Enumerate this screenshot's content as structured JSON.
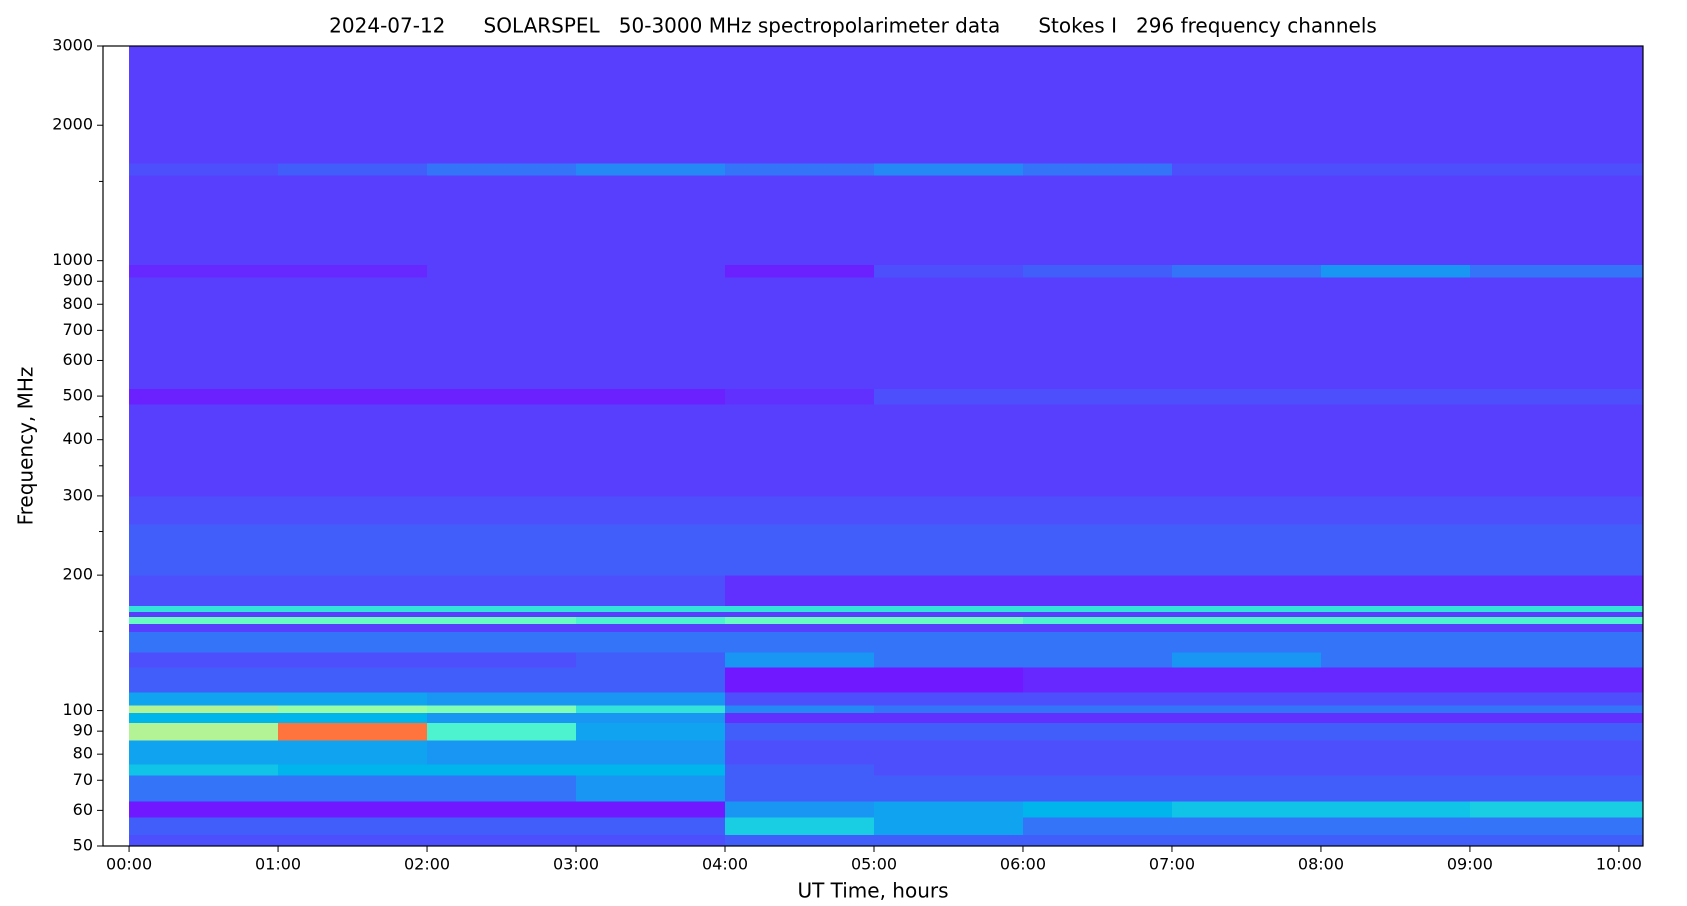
{
  "chart_data": {
    "type": "heatmap",
    "title": "2024-07-12      SOLARSPEL   50-3000 MHz spectropolarimeter data      Stokes I   296 frequency channels",
    "xlabel": "UT Time, hours",
    "ylabel": "Frequency, MHz",
    "colormap": "rainbow",
    "ylog": true,
    "xlim": [
      -10.5,
      609.7
    ],
    "xticks": [
      {
        "value": 0,
        "label": "00:00"
      },
      {
        "value": 60,
        "label": "01:00"
      },
      {
        "value": 120,
        "label": "02:00"
      },
      {
        "value": 180,
        "label": "03:00"
      },
      {
        "value": 240,
        "label": "04:00"
      },
      {
        "value": 300,
        "label": "05:00"
      },
      {
        "value": 360,
        "label": "06:00"
      },
      {
        "value": 420,
        "label": "07:00"
      },
      {
        "value": 480,
        "label": "08:00"
      },
      {
        "value": 540,
        "label": "09:00"
      },
      {
        "value": 600,
        "label": "10:00"
      }
    ],
    "ylim": [
      50,
      3000
    ],
    "yticks": [
      50,
      60,
      70,
      80,
      90,
      100,
      200,
      300,
      400,
      500,
      600,
      700,
      800,
      900,
      1000,
      2000,
      3000
    ],
    "yminorticks": [
      150,
      250,
      350,
      450,
      1500
    ],
    "time_edges": [
      0,
      60,
      120,
      180,
      240,
      300,
      360,
      420,
      480,
      540,
      610
    ],
    "freq_edges": [
      50,
      53,
      58,
      63,
      72,
      76,
      86,
      94,
      99,
      103,
      110,
      125,
      135,
      150,
      156,
      162,
      166,
      171,
      200,
      260,
      300,
      480,
      520,
      920,
      980,
      1550,
      1650,
      3000
    ],
    "z": [
      [
        0.1,
        0.1,
        0.1,
        0.1,
        0.12,
        0.12,
        0.12,
        0.12,
        0.12,
        0.12
      ],
      [
        0.12,
        0.12,
        0.12,
        0.12,
        0.3,
        0.22,
        0.15,
        0.15,
        0.15,
        0.15
      ],
      [
        0.03,
        0.03,
        0.03,
        0.03,
        0.2,
        0.22,
        0.25,
        0.28,
        0.28,
        0.3
      ],
      [
        0.15,
        0.15,
        0.15,
        0.2,
        0.12,
        0.12,
        0.12,
        0.12,
        0.12,
        0.12
      ],
      [
        0.28,
        0.25,
        0.25,
        0.25,
        0.12,
        0.1,
        0.1,
        0.1,
        0.1,
        0.1
      ],
      [
        0.22,
        0.22,
        0.2,
        0.2,
        0.1,
        0.1,
        0.1,
        0.1,
        0.1,
        0.1
      ],
      [
        0.6,
        0.85,
        0.4,
        0.22,
        0.12,
        0.12,
        0.12,
        0.12,
        0.12,
        0.12
      ],
      [
        0.25,
        0.25,
        0.2,
        0.2,
        0.06,
        0.06,
        0.06,
        0.06,
        0.06,
        0.06
      ],
      [
        0.6,
        0.55,
        0.5,
        0.35,
        0.18,
        0.15,
        0.15,
        0.15,
        0.15,
        0.15
      ],
      [
        0.22,
        0.22,
        0.2,
        0.2,
        0.1,
        0.1,
        0.1,
        0.1,
        0.1,
        0.1
      ],
      [
        0.12,
        0.12,
        0.12,
        0.12,
        0.03,
        0.03,
        0.05,
        0.05,
        0.05,
        0.05
      ],
      [
        0.1,
        0.1,
        0.1,
        0.12,
        0.2,
        0.15,
        0.15,
        0.2,
        0.15,
        0.15
      ],
      [
        0.15,
        0.15,
        0.15,
        0.15,
        0.15,
        0.15,
        0.15,
        0.15,
        0.15,
        0.15
      ],
      [
        0.08,
        0.08,
        0.08,
        0.08,
        0.08,
        0.08,
        0.08,
        0.08,
        0.08,
        0.08
      ],
      [
        0.45,
        0.45,
        0.45,
        0.4,
        0.45,
        0.45,
        0.4,
        0.4,
        0.4,
        0.4
      ],
      [
        0.08,
        0.08,
        0.08,
        0.08,
        0.08,
        0.08,
        0.08,
        0.08,
        0.08,
        0.08
      ],
      [
        0.35,
        0.35,
        0.35,
        0.35,
        0.35,
        0.35,
        0.35,
        0.35,
        0.35,
        0.35
      ],
      [
        0.1,
        0.1,
        0.1,
        0.1,
        0.06,
        0.06,
        0.06,
        0.06,
        0.06,
        0.06
      ],
      [
        0.12,
        0.12,
        0.12,
        0.12,
        0.12,
        0.12,
        0.12,
        0.12,
        0.12,
        0.12
      ],
      [
        0.1,
        0.1,
        0.1,
        0.1,
        0.1,
        0.1,
        0.1,
        0.1,
        0.1,
        0.1
      ],
      [
        0.08,
        0.08,
        0.08,
        0.08,
        0.08,
        0.08,
        0.08,
        0.08,
        0.08,
        0.08
      ],
      [
        0.04,
        0.04,
        0.04,
        0.04,
        0.06,
        0.1,
        0.1,
        0.1,
        0.1,
        0.1
      ],
      [
        0.08,
        0.08,
        0.08,
        0.08,
        0.08,
        0.08,
        0.08,
        0.08,
        0.08,
        0.08
      ],
      [
        0.05,
        0.05,
        0.08,
        0.08,
        0.04,
        0.1,
        0.12,
        0.15,
        0.2,
        0.15
      ],
      [
        0.08,
        0.08,
        0.08,
        0.08,
        0.08,
        0.08,
        0.08,
        0.08,
        0.08,
        0.08
      ],
      [
        0.1,
        0.12,
        0.15,
        0.18,
        0.15,
        0.18,
        0.15,
        0.1,
        0.1,
        0.1
      ],
      [
        0.08,
        0.08,
        0.08,
        0.08,
        0.08,
        0.08,
        0.08,
        0.08,
        0.08,
        0.08
      ]
    ]
  }
}
